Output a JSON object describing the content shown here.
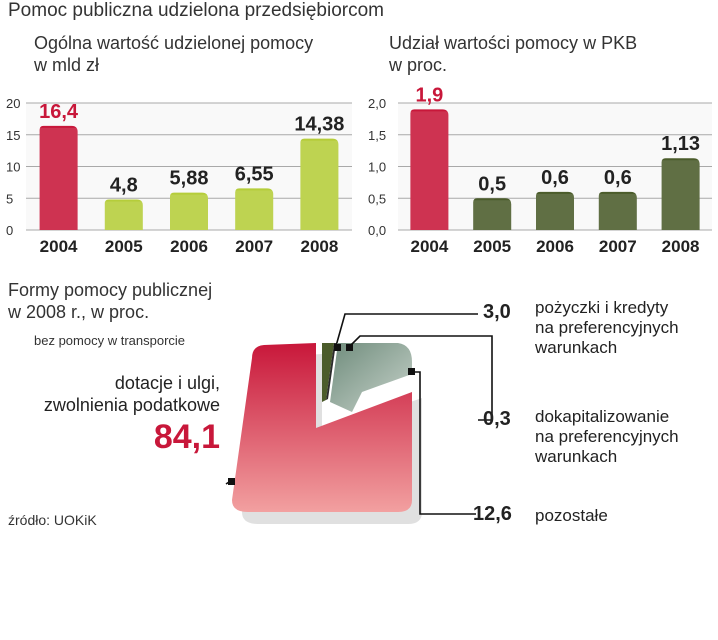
{
  "header": {
    "title": "Pomoc publiczna udzielona przedsiębiorcom"
  },
  "left": {
    "title_line1": "Ogólna wartość udzielonej pomocy",
    "title_line2": "w mld zł"
  },
  "right": {
    "title_line1": "Udział wartości pomocy w PKB",
    "title_line2": "w proc."
  },
  "pie_section": {
    "title_line1": "Formy pomocy publicznej",
    "title_line2": "w 2008 r., w proc.",
    "subtitle": "bez pomocy w transporcie",
    "big_label_line1": "dotacje i ulgi,",
    "big_label_line2": "zwolnienia podatkowe",
    "big_value": "84,1"
  },
  "source": "źródło: UOKiK",
  "colors": {
    "red": "#c8173a",
    "green": "#b5cd3a",
    "olive": "#4b5c2b",
    "grey": "#8fa89a",
    "grid": "#9a9a9a"
  },
  "chart_data": [
    {
      "type": "bar",
      "title": "Ogólna wartość udzielonej pomocy",
      "ylabel": "w mld zł",
      "categories": [
        "2004",
        "2005",
        "2006",
        "2007",
        "2008"
      ],
      "values": [
        16.4,
        4.8,
        5.88,
        6.55,
        14.38
      ],
      "value_labels": [
        "16,4",
        "4,8",
        "5,88",
        "6,55",
        "14,38"
      ],
      "yticks": [
        "0",
        "5",
        "10",
        "15",
        "20"
      ],
      "ylim": [
        0,
        20
      ],
      "bar_colors": [
        "#c8173a",
        "#b5cd3a",
        "#b5cd3a",
        "#b5cd3a",
        "#b5cd3a"
      ],
      "label_colors": [
        "#c8173a",
        "#222222",
        "#222222",
        "#222222",
        "#222222"
      ],
      "grid": true
    },
    {
      "type": "bar",
      "title": "Udział wartości pomocy w PKB",
      "ylabel": "w proc.",
      "categories": [
        "2004",
        "2005",
        "2006",
        "2007",
        "2008"
      ],
      "values": [
        1.9,
        0.5,
        0.6,
        0.6,
        1.13
      ],
      "value_labels": [
        "1,9",
        "0,5",
        "0,6",
        "0,6",
        "1,13"
      ],
      "yticks": [
        "0,0",
        "0,5",
        "1,0",
        "1,5",
        "2,0"
      ],
      "ylim": [
        0,
        2
      ],
      "bar_colors": [
        "#c8173a",
        "#4b5c2b",
        "#4b5c2b",
        "#4b5c2b",
        "#4b5c2b"
      ],
      "label_colors": [
        "#c8173a",
        "#222222",
        "#222222",
        "#222222",
        "#222222"
      ],
      "grid": true
    },
    {
      "type": "pie",
      "title": "Formy pomocy publicznej w 2008 r., w proc.",
      "slices": [
        {
          "label": "dotacje i ulgi, zwolnienia podatkowe",
          "value": 84.1,
          "value_label": "84,1",
          "color": "#c8173a"
        },
        {
          "label": "pożyczki i kredyty na preferencyjnych warunkach",
          "value": 3.0,
          "value_label": "3,0",
          "color": "#4b5c2b"
        },
        {
          "label": "dokapitalizowanie na preferencyjnych warunkach",
          "value": 0.3,
          "value_label": "0,3",
          "color": "#2b2b2b"
        },
        {
          "label": "pozostałe",
          "value": 12.6,
          "value_label": "12,6",
          "color": "#8fa89a"
        }
      ]
    }
  ],
  "pie_labels": {
    "s1_value": "3,0",
    "s1_line1": "pożyczki i kredyty",
    "s1_line2": "na preferencyjnych",
    "s1_line3": "warunkach",
    "s2_value": "0,3",
    "s2_line1": "dokapitalizowanie",
    "s2_line2": "na preferencyjnych",
    "s2_line3": "warunkach",
    "s3_value": "12,6",
    "s3_line1": "pozostałe"
  }
}
